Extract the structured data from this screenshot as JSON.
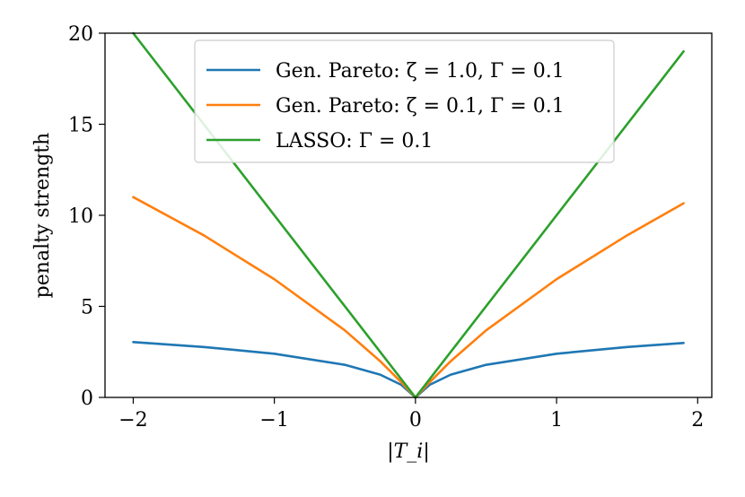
{
  "chart_data": {
    "type": "line",
    "title": "",
    "xlabel": "|T_i|",
    "ylabel": "penalty strength",
    "xlim": [
      -2.2,
      2.1
    ],
    "ylim": [
      0,
      20
    ],
    "x_ticks": [
      -2,
      -1,
      0,
      1,
      2
    ],
    "x_tick_labels": [
      "−2",
      "−1",
      "0",
      "1",
      "2"
    ],
    "y_ticks": [
      0,
      5,
      10,
      15,
      20
    ],
    "y_tick_labels": [
      "0",
      "5",
      "10",
      "15",
      "20"
    ],
    "grid": false,
    "legend_position": "top-right",
    "series": [
      {
        "name": "Gen. Pareto: ζ = 1.0, Γ = 0.1",
        "color": "#1f77b4",
        "x": [
          -2.0,
          -1.5,
          -1.0,
          -0.5,
          -0.25,
          -0.1,
          0,
          0.1,
          0.25,
          0.5,
          1.0,
          1.5,
          1.9
        ],
        "y": [
          3.04,
          2.77,
          2.4,
          1.79,
          1.25,
          0.69,
          0,
          0.69,
          1.25,
          1.79,
          2.4,
          2.77,
          2.99
        ]
      },
      {
        "name": "Gen. Pareto: ζ = 0.1, Γ = 0.1",
        "color": "#ff7f0e",
        "x": [
          -2.0,
          -1.5,
          -1.0,
          -0.5,
          -0.25,
          -0.1,
          0,
          0.1,
          0.25,
          0.5,
          1.0,
          1.5,
          1.9
        ],
        "y": [
          11.0,
          8.9,
          6.49,
          3.68,
          1.99,
          0.83,
          0,
          0.83,
          1.99,
          3.68,
          6.49,
          8.9,
          10.66
        ]
      },
      {
        "name": "LASSO: Γ = 0.1",
        "color": "#2ca02c",
        "x": [
          -2.0,
          0,
          1.9
        ],
        "y": [
          20.0,
          0,
          19.0
        ]
      }
    ]
  }
}
